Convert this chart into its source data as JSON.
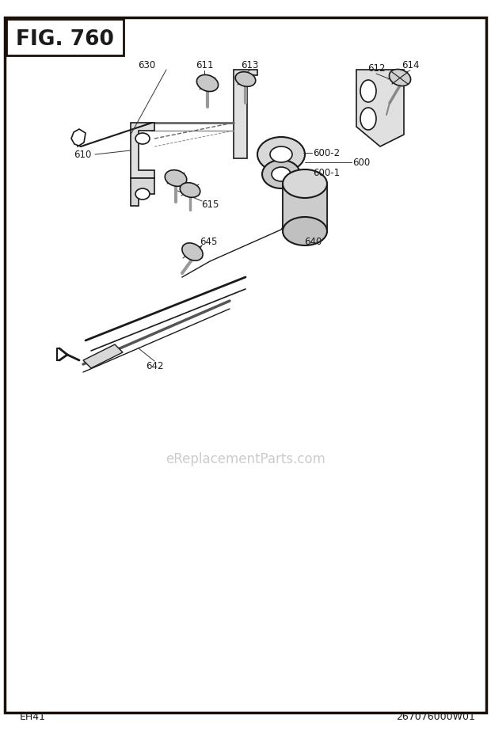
{
  "title": "FIG. 760",
  "footer_left": "EH41",
  "footer_right": "267076000W01",
  "watermark": "eReplacementParts.com",
  "bg_color": "#ffffff",
  "border_color": "#1a1008",
  "text_color": "#1a1a1a",
  "watermark_color": "#cccccc",
  "fig_w": 620,
  "fig_h": 922
}
